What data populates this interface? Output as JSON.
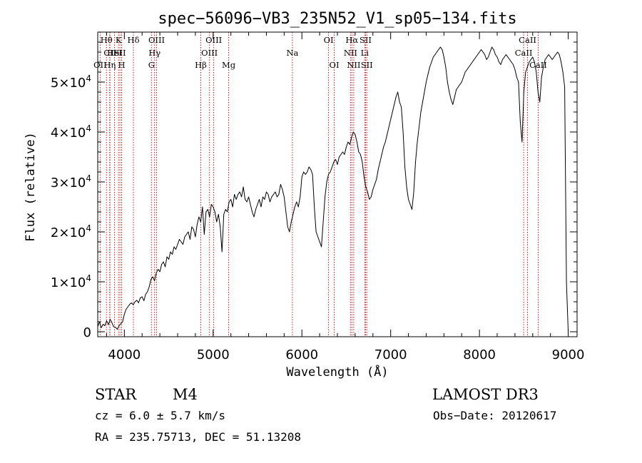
{
  "chart_data": {
    "type": "line",
    "title": "spec−56096−VB3_235N52_V1_sp05−134.fits",
    "xlabel": "Wavelength (Å)",
    "ylabel": "Flux (relative)",
    "xlim": [
      3700,
      9100
    ],
    "ylim": [
      -1000,
      60000
    ],
    "x_ticks": [
      {
        "value": 4000,
        "label": "4000"
      },
      {
        "value": 5000,
        "label": "5000"
      },
      {
        "value": 6000,
        "label": "6000"
      },
      {
        "value": 7000,
        "label": "7000"
      },
      {
        "value": 8000,
        "label": "8000"
      },
      {
        "value": 9000,
        "label": "9000"
      }
    ],
    "y_ticks": [
      {
        "value": 0,
        "mantissa": "0",
        "exponent": ""
      },
      {
        "value": 10000,
        "mantissa": "1×10",
        "exponent": "4"
      },
      {
        "value": 20000,
        "mantissa": "2×10",
        "exponent": "4"
      },
      {
        "value": 30000,
        "mantissa": "3×10",
        "exponent": "4"
      },
      {
        "value": 40000,
        "mantissa": "4×10",
        "exponent": "4"
      },
      {
        "value": 50000,
        "mantissa": "5×10",
        "exponent": "4"
      }
    ],
    "x_minor_step": 200,
    "y_minor_step": 2000,
    "series": [
      {
        "name": "flux",
        "color": "#000000",
        "x": [
          3700,
          3720,
          3740,
          3760,
          3780,
          3800,
          3820,
          3840,
          3860,
          3880,
          3900,
          3920,
          3940,
          3960,
          3980,
          4000,
          4020,
          4040,
          4060,
          4080,
          4100,
          4120,
          4140,
          4160,
          4180,
          4200,
          4220,
          4240,
          4260,
          4280,
          4300,
          4320,
          4340,
          4360,
          4380,
          4400,
          4420,
          4440,
          4460,
          4480,
          4500,
          4520,
          4540,
          4560,
          4580,
          4600,
          4620,
          4640,
          4660,
          4680,
          4700,
          4720,
          4740,
          4760,
          4780,
          4800,
          4820,
          4840,
          4860,
          4880,
          4900,
          4920,
          4940,
          4960,
          4980,
          5000,
          5020,
          5040,
          5060,
          5080,
          5100,
          5120,
          5140,
          5160,
          5180,
          5200,
          5220,
          5240,
          5260,
          5280,
          5300,
          5320,
          5340,
          5360,
          5380,
          5400,
          5420,
          5440,
          5460,
          5480,
          5500,
          5520,
          5540,
          5560,
          5580,
          5600,
          5620,
          5640,
          5660,
          5680,
          5700,
          5720,
          5740,
          5760,
          5780,
          5800,
          5820,
          5840,
          5860,
          5880,
          5900,
          5920,
          5940,
          5960,
          5980,
          6000,
          6020,
          6040,
          6060,
          6080,
          6100,
          6120,
          6140,
          6160,
          6180,
          6200,
          6220,
          6240,
          6260,
          6280,
          6300,
          6320,
          6340,
          6360,
          6380,
          6400,
          6420,
          6440,
          6460,
          6480,
          6500,
          6520,
          6540,
          6560,
          6580,
          6600,
          6620,
          6640,
          6660,
          6680,
          6700,
          6720,
          6740,
          6760,
          6780,
          6800,
          6820,
          6840,
          6860,
          6880,
          6900,
          6920,
          6940,
          6960,
          6980,
          7000,
          7020,
          7040,
          7060,
          7080,
          7100,
          7120,
          7140,
          7160,
          7180,
          7200,
          7220,
          7240,
          7260,
          7280,
          7300,
          7320,
          7340,
          7360,
          7380,
          7400,
          7420,
          7440,
          7460,
          7480,
          7500,
          7520,
          7540,
          7560,
          7580,
          7600,
          7620,
          7640,
          7660,
          7680,
          7700,
          7720,
          7740,
          7760,
          7780,
          7800,
          7820,
          7840,
          7860,
          7880,
          7900,
          7920,
          7940,
          7960,
          7980,
          8000,
          8020,
          8040,
          8060,
          8080,
          8100,
          8120,
          8140,
          8160,
          8180,
          8200,
          8220,
          8240,
          8260,
          8280,
          8300,
          8320,
          8340,
          8360,
          8380,
          8400,
          8420,
          8440,
          8460,
          8480,
          8500,
          8520,
          8540,
          8560,
          8580,
          8600,
          8620,
          8640,
          8660,
          8680,
          8700,
          8720,
          8740,
          8760,
          8780,
          8800,
          8820,
          8840,
          8860,
          8880,
          8900,
          8920,
          8940,
          8960,
          8980,
          9000
        ],
        "y": [
          1000,
          2000,
          800,
          1500,
          1200,
          2200,
          1400,
          2500,
          1800,
          1000,
          900,
          500,
          1200,
          1600,
          2000,
          3500,
          4500,
          5000,
          5500,
          5800,
          5400,
          6000,
          6300,
          5800,
          6800,
          7000,
          6200,
          7500,
          8000,
          9000,
          10500,
          11000,
          10200,
          11800,
          12500,
          12000,
          13500,
          14000,
          13000,
          15000,
          14500,
          16000,
          15500,
          17000,
          16500,
          17500,
          18500,
          18000,
          17500,
          19000,
          19500,
          20000,
          18500,
          21000,
          20500,
          19000,
          21500,
          23000,
          22000,
          25000,
          19500,
          24000,
          24500,
          23000,
          25500,
          25000,
          24000,
          22000,
          23500,
          21000,
          16000,
          23500,
          24500,
          24000,
          26000,
          26500,
          25000,
          27500,
          26500,
          27500,
          28000,
          27000,
          29000,
          26500,
          26000,
          27000,
          25500,
          24000,
          23000,
          24500,
          25500,
          26500,
          25000,
          27000,
          26500,
          28000,
          27500,
          26000,
          27000,
          27500,
          28000,
          27000,
          27500,
          29500,
          28500,
          27000,
          24000,
          21000,
          20000,
          22000,
          23500,
          25000,
          26000,
          25000,
          27000,
          31000,
          32000,
          31500,
          32000,
          33000,
          32500,
          31500,
          25000,
          20000,
          19000,
          18000,
          17000,
          22000,
          27000,
          30000,
          31500,
          32000,
          33000,
          34000,
          34500,
          33500,
          35000,
          35500,
          36000,
          35500,
          37000,
          38000,
          37500,
          39000,
          40000,
          39500,
          38000,
          36000,
          35500,
          34000,
          31000,
          29000,
          28000,
          26500,
          27000,
          28500,
          29500,
          30500,
          32500,
          34000,
          35500,
          37000,
          38000,
          39500,
          41000,
          42500,
          44000,
          45500,
          47000,
          48000,
          46000,
          45000,
          40000,
          33000,
          29000,
          26500,
          25500,
          24500,
          28000,
          34000,
          38000,
          41000,
          44000,
          46000,
          48000,
          50000,
          51500,
          53000,
          54000,
          55000,
          55500,
          56000,
          56500,
          57000,
          56500,
          55000,
          53000,
          50000,
          48000,
          46500,
          45500,
          47000,
          48500,
          49000,
          49500,
          50000,
          51000,
          52000,
          52500,
          53000,
          53500,
          54000,
          54500,
          55000,
          55500,
          56000,
          56500,
          56000,
          55500,
          54500,
          55000,
          56000,
          57000,
          56500,
          55500,
          55000,
          54000,
          53500,
          54500,
          55000,
          55500,
          55000,
          54500,
          54000,
          53500,
          52500,
          51000,
          50000,
          42000,
          38000,
          48000,
          52000,
          53000,
          54000,
          54500,
          55000,
          54000,
          52000,
          48000,
          46000,
          51000,
          53000,
          54500,
          55000,
          55500,
          55000,
          54500,
          55000,
          55500,
          56000,
          55500,
          54000,
          52000,
          49000,
          10000,
          0
        ]
      }
    ],
    "line_markers": [
      {
        "label": "Hθ",
        "x": 3798,
        "row": 0
      },
      {
        "label": "CII",
        "x": 3838,
        "row": 1
      },
      {
        "label": "OII",
        "x": 3727,
        "row": 2
      },
      {
        "label": "HeI",
        "x": 3889,
        "row": 1
      },
      {
        "label": "Hη",
        "x": 3835,
        "row": 2
      },
      {
        "label": "K",
        "x": 3934,
        "row": 0
      },
      {
        "label": "SII",
        "x": 3950,
        "row": 1
      },
      {
        "label": "H",
        "x": 3969,
        "row": 2
      },
      {
        "label": "Hδ",
        "x": 4102,
        "row": 0
      },
      {
        "label": "OIII",
        "x": 4363,
        "row": 0
      },
      {
        "label": "Hγ",
        "x": 4340,
        "row": 1
      },
      {
        "label": "G",
        "x": 4305,
        "row": 2
      },
      {
        "label": "OIII",
        "x": 5007,
        "row": 0
      },
      {
        "label": "OIII",
        "x": 4959,
        "row": 1
      },
      {
        "label": "Hβ",
        "x": 4861,
        "row": 2
      },
      {
        "label": "Mg",
        "x": 5175,
        "row": 2
      },
      {
        "label": "Na",
        "x": 5893,
        "row": 1
      },
      {
        "label": "OI",
        "x": 6300,
        "row": 0
      },
      {
        "label": "OI",
        "x": 6364,
        "row": 2
      },
      {
        "label": "Hα",
        "x": 6563,
        "row": 0
      },
      {
        "label": "NII",
        "x": 6548,
        "row": 1
      },
      {
        "label": "NII",
        "x": 6584,
        "row": 2
      },
      {
        "label": "SII",
        "x": 6717,
        "row": 0
      },
      {
        "label": "Li",
        "x": 6708,
        "row": 1
      },
      {
        "label": "SII",
        "x": 6731,
        "row": 2
      },
      {
        "label": "CaII",
        "x": 8542,
        "row": 0
      },
      {
        "label": "CaII",
        "x": 8498,
        "row": 1
      },
      {
        "label": "CaII",
        "x": 8662,
        "row": 2
      }
    ]
  },
  "info": {
    "object_type": "STAR",
    "subclass": "M4",
    "survey": "LAMOST DR3",
    "redshift": "cz = 6.0 ± 5.7 km/s",
    "obs_date": "Obs−Date: 20120617",
    "coords": "RA = 235.75713, DEC =  51.13208"
  },
  "colors": {
    "marker_line": "#cc0000",
    "spectrum": "#000000",
    "axes": "#000000"
  }
}
